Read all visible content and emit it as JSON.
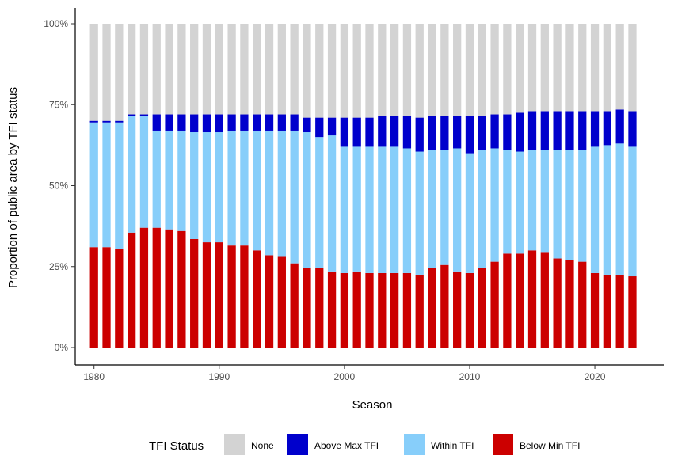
{
  "chart_data": {
    "type": "bar",
    "stacked": true,
    "xlabel": "Season",
    "ylabel": "Proportion of public area by TFI status",
    "x": [
      1980,
      1981,
      1982,
      1983,
      1984,
      1985,
      1986,
      1987,
      1988,
      1989,
      1990,
      1991,
      1992,
      1993,
      1994,
      1995,
      1996,
      1997,
      1998,
      1999,
      2000,
      2001,
      2002,
      2003,
      2004,
      2005,
      2006,
      2007,
      2008,
      2009,
      2010,
      2011,
      2012,
      2013,
      2014,
      2015,
      2016,
      2017,
      2018,
      2019,
      2020,
      2021,
      2022,
      2023
    ],
    "xlim": [
      1978.5,
      2025.5
    ],
    "xticks": [
      1980,
      1990,
      2000,
      2010,
      2020
    ],
    "ylim": [
      0,
      100
    ],
    "yticks": [
      0,
      25,
      50,
      75,
      100
    ],
    "ytick_labels": [
      "0%",
      "25%",
      "50%",
      "75%",
      "100%"
    ],
    "grid": false,
    "legend": {
      "title": "TFI Status",
      "position": "bottom",
      "entries": [
        "None",
        "Above Max TFI",
        "Within TFI",
        "Below Min TFI"
      ]
    },
    "series": [
      {
        "name": "Below Min TFI",
        "color": "#cc0000",
        "values": [
          31,
          31,
          30.5,
          35.5,
          37,
          37,
          36.5,
          36,
          33.5,
          32.5,
          32.5,
          31.5,
          31.5,
          30,
          28.5,
          28,
          26,
          24.5,
          24.5,
          23.5,
          23,
          23.5,
          23,
          23,
          23,
          23,
          22.5,
          24.5,
          25.5,
          23.5,
          23,
          24.5,
          26.5,
          29,
          29,
          30,
          29.5,
          27.5,
          27,
          26.5,
          23,
          22.5,
          22.5,
          22
        ]
      },
      {
        "name": "Within TFI",
        "color": "#87cefa",
        "values": [
          38.5,
          38.5,
          39,
          36,
          34.5,
          30,
          30.5,
          31,
          33,
          34,
          34,
          35.5,
          35.5,
          37,
          38.5,
          39,
          41,
          42,
          40.5,
          42,
          39,
          38.5,
          39,
          39,
          39,
          38.5,
          38,
          36.5,
          35.5,
          38,
          37,
          36.5,
          35,
          32,
          31.5,
          31,
          31.5,
          33.5,
          34,
          34.5,
          39,
          40,
          40.5,
          40
        ]
      },
      {
        "name": "Above Max TFI",
        "color": "#0000cc",
        "values": [
          0.5,
          0.5,
          0.5,
          0.5,
          0.5,
          5,
          5,
          5,
          5.5,
          5.5,
          5.5,
          5,
          5,
          5,
          5,
          5,
          5,
          4.5,
          6,
          5.5,
          9,
          9,
          9,
          9.5,
          9.5,
          10,
          10.5,
          10.5,
          10.5,
          10,
          11.5,
          10.5,
          10.5,
          11,
          12,
          12,
          12,
          12,
          12,
          12,
          11,
          10.5,
          10.5,
          11
        ]
      },
      {
        "name": "None",
        "color": "#d3d3d3",
        "values": [
          30,
          30,
          30,
          28,
          28,
          28,
          28,
          28,
          28,
          28,
          28,
          28,
          28,
          28,
          28,
          28,
          28,
          29,
          29,
          29,
          29,
          29,
          29,
          28.5,
          28.5,
          28.5,
          29,
          28.5,
          28.5,
          28.5,
          28.5,
          28.5,
          28,
          28,
          27.5,
          27,
          27,
          27,
          27,
          27,
          27,
          27,
          26.5,
          27
        ]
      }
    ]
  }
}
